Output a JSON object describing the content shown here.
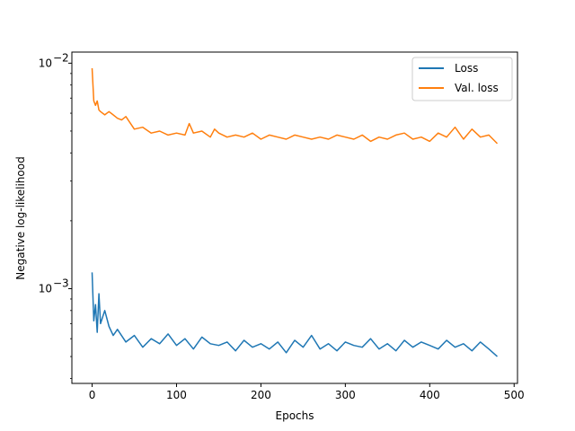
{
  "chart_data": {
    "type": "line",
    "title": "",
    "xlabel": "Epochs",
    "ylabel": "Negative log-likelihood",
    "xlim": [
      -24,
      504
    ],
    "ylim": [
      0.00038,
      0.0112
    ],
    "yscale": "log",
    "x_ticks": [
      0,
      100,
      200,
      300,
      400,
      500
    ],
    "y_ticks": [
      {
        "value": 0.001,
        "base": "10",
        "exp": "−3"
      },
      {
        "value": 0.01,
        "base": "10",
        "exp": "−2"
      }
    ],
    "grid": false,
    "legend_position": "top-right",
    "series": [
      {
        "name": "Loss",
        "color": "#1f77b4",
        "x": [
          0,
          2,
          4,
          6,
          8,
          10,
          15,
          20,
          25,
          30,
          40,
          50,
          60,
          70,
          80,
          90,
          100,
          110,
          120,
          130,
          140,
          150,
          160,
          170,
          180,
          190,
          200,
          210,
          220,
          230,
          240,
          250,
          260,
          270,
          280,
          290,
          300,
          310,
          320,
          330,
          340,
          350,
          360,
          370,
          380,
          390,
          400,
          410,
          420,
          430,
          440,
          450,
          460,
          470,
          480
        ],
        "y": [
          0.00118,
          0.00072,
          0.00085,
          0.00064,
          0.00095,
          0.0007,
          0.0008,
          0.00068,
          0.00062,
          0.00066,
          0.00058,
          0.00062,
          0.00055,
          0.0006,
          0.00057,
          0.00063,
          0.00056,
          0.0006,
          0.00054,
          0.00061,
          0.00057,
          0.00056,
          0.00058,
          0.00053,
          0.00059,
          0.00055,
          0.00057,
          0.00054,
          0.00058,
          0.00052,
          0.00059,
          0.00055,
          0.00062,
          0.00054,
          0.00057,
          0.00053,
          0.00058,
          0.00056,
          0.00055,
          0.0006,
          0.00054,
          0.00057,
          0.00053,
          0.00059,
          0.00055,
          0.00058,
          0.00056,
          0.00054,
          0.00059,
          0.00055,
          0.00057,
          0.00053,
          0.00058,
          0.00054,
          0.0005
        ]
      },
      {
        "name": "Val. loss",
        "color": "#ff7f0e",
        "x": [
          0,
          2,
          4,
          6,
          8,
          10,
          15,
          20,
          25,
          30,
          35,
          40,
          50,
          60,
          70,
          80,
          90,
          100,
          110,
          115,
          120,
          130,
          140,
          145,
          150,
          160,
          170,
          180,
          190,
          200,
          210,
          220,
          230,
          240,
          250,
          260,
          270,
          280,
          290,
          300,
          310,
          320,
          330,
          340,
          350,
          360,
          370,
          380,
          390,
          400,
          410,
          420,
          430,
          440,
          450,
          460,
          470,
          480
        ],
        "y": [
          0.0095,
          0.0068,
          0.0065,
          0.0068,
          0.0062,
          0.0061,
          0.0059,
          0.0061,
          0.0059,
          0.0057,
          0.0056,
          0.0058,
          0.0051,
          0.0052,
          0.0049,
          0.005,
          0.0048,
          0.0049,
          0.0048,
          0.0054,
          0.0049,
          0.005,
          0.0047,
          0.0051,
          0.0049,
          0.0047,
          0.0048,
          0.0047,
          0.0049,
          0.0046,
          0.0048,
          0.0047,
          0.0046,
          0.0048,
          0.0047,
          0.0046,
          0.0047,
          0.0046,
          0.0048,
          0.0047,
          0.0046,
          0.0048,
          0.0045,
          0.0047,
          0.0046,
          0.0048,
          0.0049,
          0.0046,
          0.0047,
          0.0045,
          0.0049,
          0.0047,
          0.0052,
          0.0046,
          0.0051,
          0.0047,
          0.0048,
          0.0044
        ]
      }
    ]
  }
}
